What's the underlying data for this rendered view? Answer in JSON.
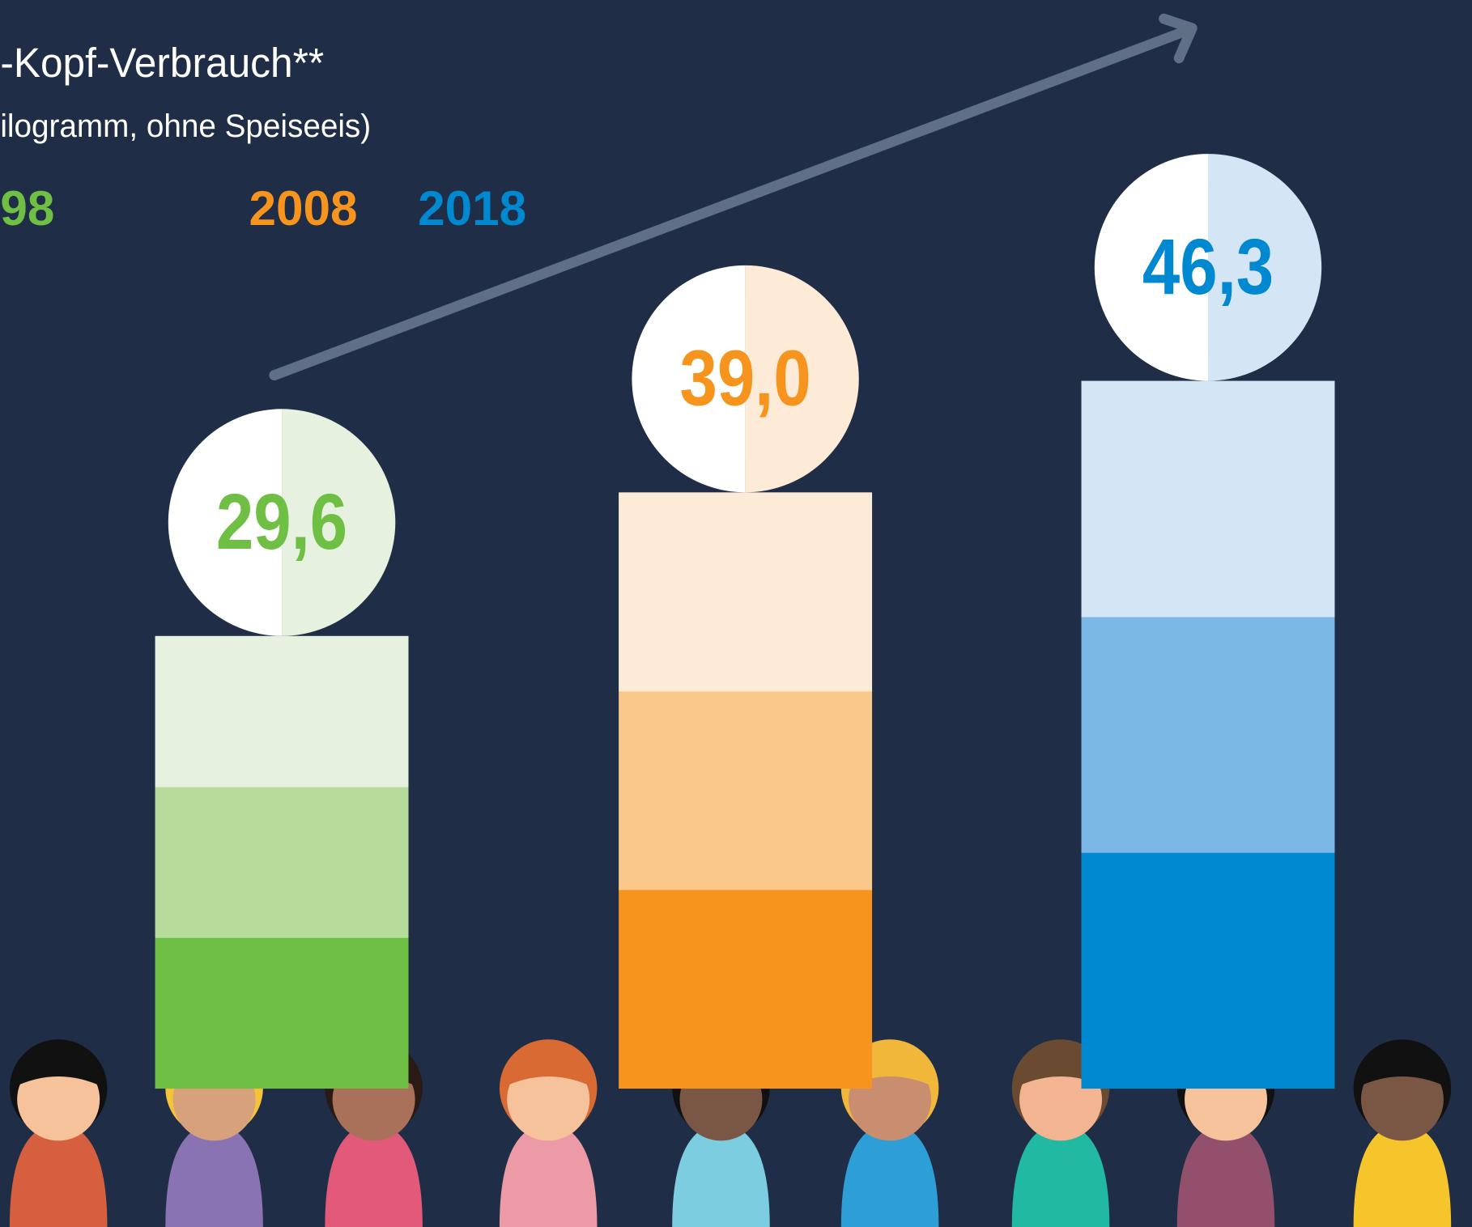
{
  "chart_data": {
    "type": "bar",
    "title": "-Kopf-Verbrauch**",
    "subtitle": "ilogramm, ohne Speiseeis)",
    "categories": [
      "98",
      "2008",
      "2018"
    ],
    "values": [
      29.6,
      39.0,
      46.3
    ],
    "value_labels": [
      "29,6",
      "39,0",
      "46,3"
    ],
    "colors": [
      "#6fbf44",
      "#f7941d",
      "#0088d1"
    ],
    "segment_colors": [
      [
        "#6fbf44",
        "#b6dc9c",
        "#e6f2df"
      ],
      [
        "#f7941d",
        "#fbc88c",
        "#fdebd7"
      ],
      [
        "#0088d1",
        "#7ab7e4",
        "#d4e5f5"
      ]
    ]
  }
}
